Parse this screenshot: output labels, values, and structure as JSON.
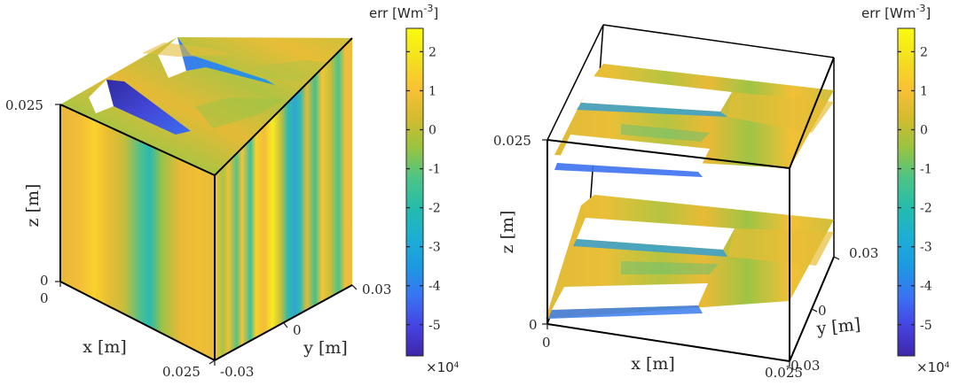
{
  "colors": {
    "parula": [
      "#3e26a8",
      "#4543e3",
      "#3a73f4",
      "#1b9ae2",
      "#1cafd4",
      "#25bdaa",
      "#4dc585",
      "#99c440",
      "#d5bb2e",
      "#f9c234",
      "#f4e11e",
      "#f9fb0e"
    ],
    "background": "#ffffff",
    "axis": "#000000"
  },
  "chart_data": [
    {
      "type": "heatmap",
      "subtype": "3d-volume-slice",
      "description_label": "left",
      "xlabel": "x [m]",
      "ylabel": "y [m]",
      "zlabel": "z [m]",
      "x_ticks": [
        "0",
        "0.025"
      ],
      "y_ticks": [
        "-0.03",
        "0",
        "0.03"
      ],
      "z_ticks": [
        "0",
        "0.025"
      ],
      "xlim": [
        0,
        0.025
      ],
      "ylim": [
        -0.03,
        0.03
      ],
      "zlim": [
        0,
        0.025
      ],
      "colorbar": {
        "label": "err [Wm",
        "label_exp": "-3",
        "label_close": "]",
        "ticks": [
          "2",
          "1",
          "0",
          "-1",
          "-2",
          "-3",
          "-4",
          "-5"
        ],
        "tick_values": [
          2,
          1,
          0,
          -1,
          -2,
          -3,
          -4,
          -5
        ],
        "range": [
          -5.8,
          2.6
        ],
        "multiplier_base": "×10",
        "multiplier_exp": "4"
      }
    },
    {
      "type": "heatmap",
      "subtype": "3d-horizontal-slices",
      "description_label": "right",
      "xlabel": "x [m]",
      "ylabel": "y [m]",
      "zlabel": "z [m]",
      "x_ticks": [
        "0",
        "0.025"
      ],
      "y_ticks": [
        "-0.03",
        "0",
        "0.03"
      ],
      "z_ticks": [
        "0",
        "0.025"
      ],
      "xlim": [
        0,
        0.025
      ],
      "ylim": [
        -0.03,
        0.03
      ],
      "zlim": [
        0,
        0.025
      ],
      "colorbar": {
        "label": "err [Wm",
        "label_exp": "-3",
        "label_close": "]",
        "ticks": [
          "2",
          "1",
          "0",
          "-1",
          "-2",
          "-3",
          "-4",
          "-5"
        ],
        "tick_values": [
          2,
          1,
          0,
          -1,
          -2,
          -3,
          -4,
          -5
        ],
        "range": [
          -5.8,
          2.6
        ],
        "multiplier_base": "×10",
        "multiplier_exp": "4"
      }
    }
  ]
}
